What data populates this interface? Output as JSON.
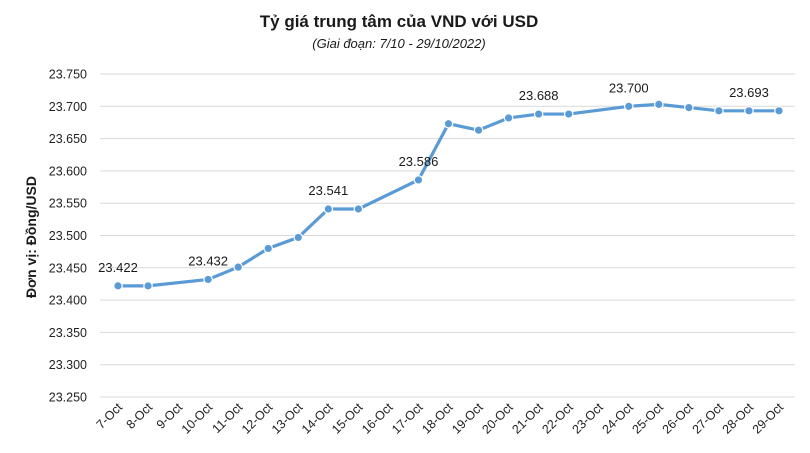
{
  "chart_data": {
    "type": "line",
    "title": "Tỷ giá trung tâm của VND với USD",
    "subtitle": "(Giai đoạn: 7/10 - 29/10/2022)",
    "xlabel": "",
    "ylabel": "Đơn vị: Đồng/USD",
    "ylim": [
      23250,
      23750
    ],
    "ytick_labels": [
      "23.750",
      "23.700",
      "23.650",
      "23.600",
      "23.550",
      "23.500",
      "23.450",
      "23.400",
      "23.350",
      "23.300",
      "23.250"
    ],
    "categories": [
      "7-Oct",
      "8-Oct",
      "9-Oct",
      "10-Oct",
      "11-Oct",
      "12-Oct",
      "13-Oct",
      "14-Oct",
      "15-Oct",
      "16-Oct",
      "17-Oct",
      "18-Oct",
      "19-Oct",
      "20-Oct",
      "21-Oct",
      "22-Oct",
      "23-Oct",
      "24-Oct",
      "25-Oct",
      "26-Oct",
      "27-Oct",
      "28-Oct",
      "29-Oct"
    ],
    "series": [
      {
        "values": [
          23422,
          23422,
          null,
          23432,
          23451,
          23480,
          23497,
          23541,
          23541,
          null,
          23586,
          23673,
          23663,
          23682,
          23688,
          23688,
          null,
          23700,
          23703,
          23698,
          23693,
          23693,
          23693
        ],
        "color": "#5b9bd5"
      }
    ],
    "data_labels": [
      {
        "index": 0,
        "text": "23.422"
      },
      {
        "index": 3,
        "text": "23.432"
      },
      {
        "index": 7,
        "text": "23.541"
      },
      {
        "index": 10,
        "text": "23.586"
      },
      {
        "index": 14,
        "text": "23.688"
      },
      {
        "index": 17,
        "text": "23.700"
      },
      {
        "index": 21,
        "text": "23.693"
      }
    ],
    "grid": "horizontal",
    "legend": "none"
  }
}
